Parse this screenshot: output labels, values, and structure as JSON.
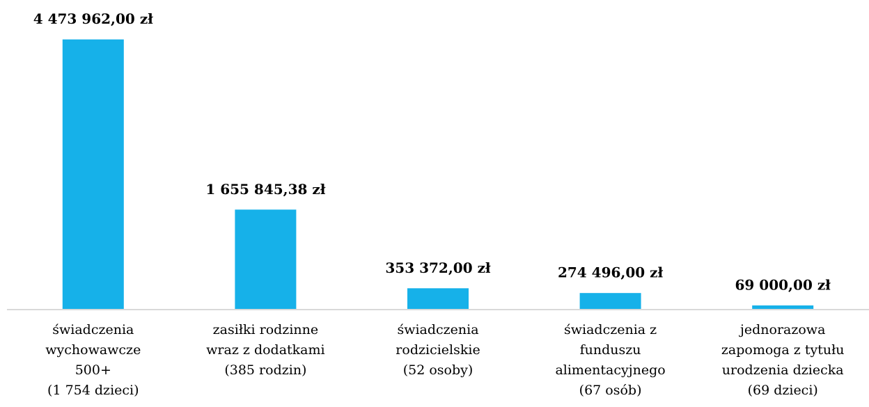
{
  "chart_data": {
    "type": "bar",
    "categories": [
      [
        "świadczenia",
        "wychowawcze",
        "500+",
        "(1 754 dzieci)"
      ],
      [
        "zasiłki rodzinne",
        "wraz z dodatkami",
        "(385 rodzin)"
      ],
      [
        "świadczenia",
        "rodzicielskie",
        "(52 osoby)"
      ],
      [
        "świadczenia z",
        "funduszu",
        "alimentacyjnego",
        "(67 osób)"
      ],
      [
        "jednorazowa",
        "zapomoga z tytułu",
        "urodzenia dziecka",
        "(69 dzieci)"
      ]
    ],
    "values": [
      4473962.0,
      1655845.38,
      353372.0,
      274496.0,
      69000.0
    ],
    "value_labels": [
      "4 473 962,00 zł",
      "1 655 845,38 zł",
      "353 372,00 zł",
      "274 496,00 zł",
      "69 000,00 zł"
    ],
    "color": "#16b1e9",
    "ylim": [
      0,
      5000000
    ]
  }
}
